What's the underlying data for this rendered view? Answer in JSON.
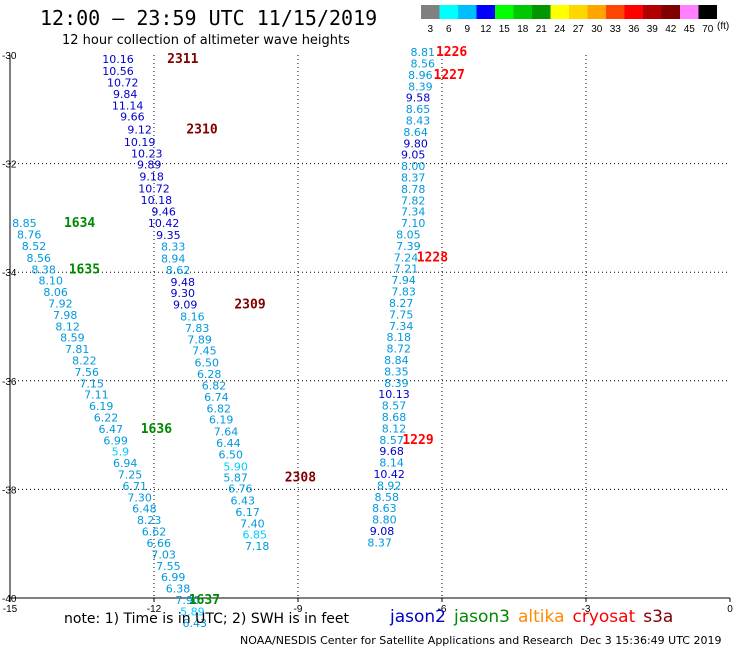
{
  "title": "12:00 – 23:59 UTC 11/15/2019",
  "subtitle": "12 hour collection of altimeter wave heights",
  "colorbar": {
    "unit": "(ft)",
    "levels": [
      "3",
      "6",
      "9",
      "12",
      "15",
      "18",
      "21",
      "24",
      "27",
      "30",
      "33",
      "36",
      "39",
      "42",
      "45",
      "70"
    ],
    "colors": [
      "#808080",
      "#00ffff",
      "#00bfff",
      "#0000ff",
      "#00ff00",
      "#00c800",
      "#009600",
      "#ffff00",
      "#ffd700",
      "#ffa500",
      "#ff4500",
      "#ff0000",
      "#b00000",
      "#800000",
      "#ff80ff",
      "#000000"
    ]
  },
  "note": "note:  1) Time is in UTC;  2) SWH is in feet",
  "legend": [
    {
      "label": "jason2",
      "color": "#0000cc"
    },
    {
      "label": "jason3",
      "color": "#008800"
    },
    {
      "label": "altika",
      "color": "#ff8c00"
    },
    {
      "label": "cryosat",
      "color": "#ff0000"
    },
    {
      "label": "s3a",
      "color": "#800000"
    }
  ],
  "footer": {
    "credit": "NOAA/NESDIS Center for Satellite Applications and Research",
    "timestamp": "Dec  3 15:36:49 UTC 2019"
  },
  "chart_data": {
    "type": "scatter",
    "xlim": [
      -15,
      0
    ],
    "ylim": [
      -40,
      -30
    ],
    "x_ticks": [
      -15,
      -12,
      -9,
      -6,
      -3,
      0
    ],
    "y_ticks": [
      -30,
      -32,
      -34,
      -36,
      -38,
      -40
    ],
    "grid": true,
    "tracks": [
      {
        "points": [
          {
            "x": -12.75,
            "y": -30.15,
            "label": "10.16",
            "color": "#0000cc"
          },
          {
            "x": -12.75,
            "y": -30.37,
            "label": "10.56",
            "color": "#0000cc"
          },
          {
            "x": -12.65,
            "y": -30.58,
            "label": "10.72",
            "color": "#0000cc"
          },
          {
            "x": -12.6,
            "y": -30.79,
            "label": "9.84",
            "color": "#0000cc"
          },
          {
            "x": -12.55,
            "y": -31.0,
            "label": "11.14",
            "color": "#0000cc"
          },
          {
            "x": -12.45,
            "y": -31.21,
            "label": "9.66",
            "color": "#0000cc"
          },
          {
            "x": -12.3,
            "y": -31.45,
            "label": "9.12",
            "color": "#0000cc"
          },
          {
            "x": -12.3,
            "y": -31.68,
            "label": "10.19",
            "color": "#0000cc"
          },
          {
            "x": -12.15,
            "y": -31.89,
            "label": "10.23",
            "color": "#0000cc"
          },
          {
            "x": -12.1,
            "y": -32.09,
            "label": "9.89",
            "color": "#0000cc"
          },
          {
            "x": -12.05,
            "y": -32.31,
            "label": "9.18",
            "color": "#0000cc"
          },
          {
            "x": -12.0,
            "y": -32.53,
            "label": "10.72",
            "color": "#0000cc"
          },
          {
            "x": -11.95,
            "y": -32.74,
            "label": "10.18",
            "color": "#0000cc"
          },
          {
            "x": -11.8,
            "y": -32.96,
            "label": "9.46",
            "color": "#0000cc"
          },
          {
            "x": -11.8,
            "y": -33.17,
            "label": "10.42",
            "color": "#0000cc"
          },
          {
            "x": -11.7,
            "y": -33.39,
            "label": "9.35",
            "color": "#0000cc"
          },
          {
            "x": -11.6,
            "y": -33.6,
            "label": "8.33",
            "color": "#0099dd"
          },
          {
            "x": -11.6,
            "y": -33.82,
            "label": "8.94",
            "color": "#0099dd"
          },
          {
            "x": -11.5,
            "y": -34.03,
            "label": "8.62",
            "color": "#0099dd"
          },
          {
            "x": -11.4,
            "y": -34.25,
            "label": "9.48",
            "color": "#0000cc"
          },
          {
            "x": -11.4,
            "y": -34.46,
            "label": "9.30",
            "color": "#0000cc"
          },
          {
            "x": -11.35,
            "y": -34.67,
            "label": "9.09",
            "color": "#0000cc"
          },
          {
            "x": -11.2,
            "y": -34.89,
            "label": "8.16",
            "color": "#0099dd"
          },
          {
            "x": -11.1,
            "y": -35.1,
            "label": "7.83",
            "color": "#0099dd"
          },
          {
            "x": -11.05,
            "y": -35.31,
            "label": "7.89",
            "color": "#0099dd"
          },
          {
            "x": -10.95,
            "y": -35.52,
            "label": "7.45",
            "color": "#0099dd"
          },
          {
            "x": -10.9,
            "y": -35.74,
            "label": "6.50",
            "color": "#0099dd"
          },
          {
            "x": -10.85,
            "y": -35.95,
            "label": "6.28",
            "color": "#0099dd"
          },
          {
            "x": -10.75,
            "y": -36.16,
            "label": "6.82",
            "color": "#0099dd"
          },
          {
            "x": -10.7,
            "y": -36.37,
            "label": "6.74",
            "color": "#0099dd"
          },
          {
            "x": -10.65,
            "y": -36.58,
            "label": "6.82",
            "color": "#0099dd"
          },
          {
            "x": -10.6,
            "y": -36.79,
            "label": "6.19",
            "color": "#0099dd"
          },
          {
            "x": -10.5,
            "y": -37.01,
            "label": "7.64",
            "color": "#0099dd"
          },
          {
            "x": -10.45,
            "y": -37.22,
            "label": "6.44",
            "color": "#0099dd"
          },
          {
            "x": -10.4,
            "y": -37.43,
            "label": "6.50",
            "color": "#0099dd"
          },
          {
            "x": -10.3,
            "y": -37.65,
            "label": "5.90",
            "color": "#00ccff"
          },
          {
            "x": -10.3,
            "y": -37.85,
            "label": "5.87",
            "color": "#0099dd"
          },
          {
            "x": -10.2,
            "y": -38.06,
            "label": "6.76",
            "color": "#0099dd"
          },
          {
            "x": -10.15,
            "y": -38.28,
            "label": "6.43",
            "color": "#0099dd"
          },
          {
            "x": -10.05,
            "y": -38.49,
            "label": "6.17",
            "color": "#0099dd"
          },
          {
            "x": -9.95,
            "y": -38.7,
            "label": "7.40",
            "color": "#0099dd"
          },
          {
            "x": -9.9,
            "y": -38.9,
            "label": "6.85",
            "color": "#00ccff"
          },
          {
            "x": -9.85,
            "y": -39.12,
            "label": "7.18",
            "color": "#0099dd"
          }
        ],
        "times": [
          {
            "x": -11.4,
            "y": -30.15,
            "label": "2311",
            "color": "#800000"
          },
          {
            "x": -11.0,
            "y": -31.45,
            "label": "2310",
            "color": "#800000"
          },
          {
            "x": -10.0,
            "y": -34.67,
            "label": "2309",
            "color": "#800000"
          },
          {
            "x": -8.95,
            "y": -37.85,
            "label": "2308",
            "color": "#800000"
          }
        ]
      },
      {
        "points": [
          {
            "x": -14.7,
            "y": -33.17,
            "label": "8.85",
            "color": "#0099dd"
          },
          {
            "x": -14.6,
            "y": -33.38,
            "label": "8.76",
            "color": "#0099dd"
          },
          {
            "x": -14.5,
            "y": -33.59,
            "label": "8.52",
            "color": "#0099dd"
          },
          {
            "x": -14.4,
            "y": -33.81,
            "label": "8.56",
            "color": "#0099dd"
          },
          {
            "x": -14.3,
            "y": -34.02,
            "label": "8.38",
            "color": "#0099dd"
          },
          {
            "x": -14.15,
            "y": -34.23,
            "label": "8.10",
            "color": "#0099dd"
          },
          {
            "x": -14.05,
            "y": -34.44,
            "label": "8.06",
            "color": "#0099dd"
          },
          {
            "x": -13.95,
            "y": -34.65,
            "label": "7.92",
            "color": "#0099dd"
          },
          {
            "x": -13.85,
            "y": -34.86,
            "label": "7.98",
            "color": "#0099dd"
          },
          {
            "x": -13.8,
            "y": -35.07,
            "label": "8.12",
            "color": "#0099dd"
          },
          {
            "x": -13.7,
            "y": -35.28,
            "label": "8.59",
            "color": "#0099dd"
          },
          {
            "x": -13.6,
            "y": -35.49,
            "label": "7.81",
            "color": "#0099dd"
          },
          {
            "x": -13.45,
            "y": -35.7,
            "label": "8.22",
            "color": "#0099dd"
          },
          {
            "x": -13.4,
            "y": -35.91,
            "label": "7.56",
            "color": "#0099dd"
          },
          {
            "x": -13.3,
            "y": -36.12,
            "label": "7.15",
            "color": "#0099dd"
          },
          {
            "x": -13.2,
            "y": -36.33,
            "label": "7.11",
            "color": "#0099dd"
          },
          {
            "x": -13.1,
            "y": -36.54,
            "label": "6.19",
            "color": "#0099dd"
          },
          {
            "x": -13.0,
            "y": -36.75,
            "label": "6.22",
            "color": "#0099dd"
          },
          {
            "x": -12.9,
            "y": -36.96,
            "label": "6.47",
            "color": "#0099dd"
          },
          {
            "x": -12.8,
            "y": -37.17,
            "label": "6.99",
            "color": "#0099dd"
          },
          {
            "x": -12.7,
            "y": -37.38,
            "label": "5.9",
            "color": "#00ccff"
          },
          {
            "x": -12.6,
            "y": -37.59,
            "label": "6.94",
            "color": "#0099dd"
          },
          {
            "x": -12.5,
            "y": -37.8,
            "label": "7.25",
            "color": "#0099dd"
          },
          {
            "x": -12.4,
            "y": -38.01,
            "label": "6.71",
            "color": "#0099dd"
          },
          {
            "x": -12.3,
            "y": -38.22,
            "label": "7.30",
            "color": "#0099dd"
          },
          {
            "x": -12.2,
            "y": -38.43,
            "label": "6.48",
            "color": "#0099dd"
          },
          {
            "x": -12.1,
            "y": -38.64,
            "label": "8.23",
            "color": "#0099dd"
          },
          {
            "x": -12.0,
            "y": -38.85,
            "label": "6.62",
            "color": "#0099dd"
          },
          {
            "x": -11.9,
            "y": -39.06,
            "label": "6.66",
            "color": "#0099dd"
          },
          {
            "x": -11.8,
            "y": -39.27,
            "label": "7.03",
            "color": "#0099dd"
          },
          {
            "x": -11.7,
            "y": -39.48,
            "label": "7.55",
            "color": "#0099dd"
          },
          {
            "x": -11.6,
            "y": -39.69,
            "label": "6.99",
            "color": "#0099dd"
          },
          {
            "x": -11.5,
            "y": -39.9,
            "label": "6.38",
            "color": "#0099dd"
          },
          {
            "x": -11.3,
            "y": -40.11,
            "label": "7.90",
            "color": "#0099dd"
          },
          {
            "x": -11.2,
            "y": -40.32,
            "label": "5.89",
            "color": "#00ccff"
          },
          {
            "x": -11.15,
            "y": -40.53,
            "label": "6.43",
            "color": "#0099dd"
          }
        ],
        "times": [
          {
            "x": -13.55,
            "y": -33.17,
            "label": "1634",
            "color": "#008800"
          },
          {
            "x": -13.45,
            "y": -34.02,
            "label": "1635",
            "color": "#008800"
          },
          {
            "x": -11.95,
            "y": -36.96,
            "label": "1636",
            "color": "#008800"
          },
          {
            "x": -10.95,
            "y": -40.11,
            "label": "1637",
            "color": "#008800"
          }
        ]
      },
      {
        "points": [
          {
            "x": -6.4,
            "y": -30.02,
            "label": "8.81",
            "color": "#0099dd"
          },
          {
            "x": -6.4,
            "y": -30.23,
            "label": "8.56",
            "color": "#0099dd"
          },
          {
            "x": -6.45,
            "y": -30.44,
            "label": "8.96",
            "color": "#0099dd"
          },
          {
            "x": -6.45,
            "y": -30.65,
            "label": "8.39",
            "color": "#0099dd"
          },
          {
            "x": -6.5,
            "y": -30.86,
            "label": "9.58",
            "color": "#0000cc"
          },
          {
            "x": -6.5,
            "y": -31.07,
            "label": "8.65",
            "color": "#0099dd"
          },
          {
            "x": -6.5,
            "y": -31.28,
            "label": "8.43",
            "color": "#0099dd"
          },
          {
            "x": -6.55,
            "y": -31.49,
            "label": "8.64",
            "color": "#0099dd"
          },
          {
            "x": -6.55,
            "y": -31.7,
            "label": "9.80",
            "color": "#0000cc"
          },
          {
            "x": -6.6,
            "y": -31.91,
            "label": "9.05",
            "color": "#0000cc"
          },
          {
            "x": -6.6,
            "y": -32.12,
            "label": "8.00",
            "color": "#0099dd"
          },
          {
            "x": -6.6,
            "y": -32.33,
            "label": "8.37",
            "color": "#0099dd"
          },
          {
            "x": -6.6,
            "y": -32.54,
            "label": "8.78",
            "color": "#0099dd"
          },
          {
            "x": -6.6,
            "y": -32.75,
            "label": "7.82",
            "color": "#0099dd"
          },
          {
            "x": -6.6,
            "y": -32.96,
            "label": "7.34",
            "color": "#0099dd"
          },
          {
            "x": -6.6,
            "y": -33.17,
            "label": "7.10",
            "color": "#0099dd"
          },
          {
            "x": -6.7,
            "y": -33.38,
            "label": "8.05",
            "color": "#0099dd"
          },
          {
            "x": -6.7,
            "y": -33.59,
            "label": "7.39",
            "color": "#0099dd"
          },
          {
            "x": -6.75,
            "y": -33.8,
            "label": "7.24",
            "color": "#0099dd"
          },
          {
            "x": -6.75,
            "y": -34.01,
            "label": "7.21",
            "color": "#0099dd"
          },
          {
            "x": -6.8,
            "y": -34.22,
            "label": "7.94",
            "color": "#0099dd"
          },
          {
            "x": -6.8,
            "y": -34.43,
            "label": "7.83",
            "color": "#0099dd"
          },
          {
            "x": -6.85,
            "y": -34.64,
            "label": "8.27",
            "color": "#0099dd"
          },
          {
            "x": -6.85,
            "y": -34.85,
            "label": "7.75",
            "color": "#0099dd"
          },
          {
            "x": -6.85,
            "y": -35.06,
            "label": "7.34",
            "color": "#0099dd"
          },
          {
            "x": -6.9,
            "y": -35.27,
            "label": "8.18",
            "color": "#0099dd"
          },
          {
            "x": -6.9,
            "y": -35.48,
            "label": "8.72",
            "color": "#0099dd"
          },
          {
            "x": -6.95,
            "y": -35.69,
            "label": "8.84",
            "color": "#0099dd"
          },
          {
            "x": -6.95,
            "y": -35.9,
            "label": "8.35",
            "color": "#0099dd"
          },
          {
            "x": -6.95,
            "y": -36.11,
            "label": "8.39",
            "color": "#0099dd"
          },
          {
            "x": -7.0,
            "y": -36.32,
            "label": "10.13",
            "color": "#0000cc"
          },
          {
            "x": -7.0,
            "y": -36.53,
            "label": "8.57",
            "color": "#0099dd"
          },
          {
            "x": -7.0,
            "y": -36.74,
            "label": "8.68",
            "color": "#0099dd"
          },
          {
            "x": -7.0,
            "y": -36.95,
            "label": "8.12",
            "color": "#0099dd"
          },
          {
            "x": -7.05,
            "y": -37.16,
            "label": "8.57",
            "color": "#0099dd"
          },
          {
            "x": -7.05,
            "y": -37.37,
            "label": "9.68",
            "color": "#0000cc"
          },
          {
            "x": -7.05,
            "y": -37.58,
            "label": "8.14",
            "color": "#0099dd"
          },
          {
            "x": -7.1,
            "y": -37.79,
            "label": "10.42",
            "color": "#0000cc"
          },
          {
            "x": -7.1,
            "y": -38.0,
            "label": "8.92",
            "color": "#0099dd"
          },
          {
            "x": -7.15,
            "y": -38.21,
            "label": "8.58",
            "color": "#0099dd"
          },
          {
            "x": -7.2,
            "y": -38.42,
            "label": "8.63",
            "color": "#0099dd"
          },
          {
            "x": -7.2,
            "y": -38.63,
            "label": "8.80",
            "color": "#0099dd"
          },
          {
            "x": -7.25,
            "y": -38.84,
            "label": "9.08",
            "color": "#0000cc"
          },
          {
            "x": -7.3,
            "y": -39.05,
            "label": "8.37",
            "color": "#0099dd"
          }
        ],
        "times": [
          {
            "x": -5.8,
            "y": -30.02,
            "label": "1226",
            "color": "#ff0000"
          },
          {
            "x": -5.85,
            "y": -30.44,
            "label": "1227",
            "color": "#ff0000"
          },
          {
            "x": -6.2,
            "y": -33.8,
            "label": "1228",
            "color": "#ff0000"
          },
          {
            "x": -6.5,
            "y": -37.16,
            "label": "1229",
            "color": "#ff0000"
          }
        ]
      }
    ]
  }
}
